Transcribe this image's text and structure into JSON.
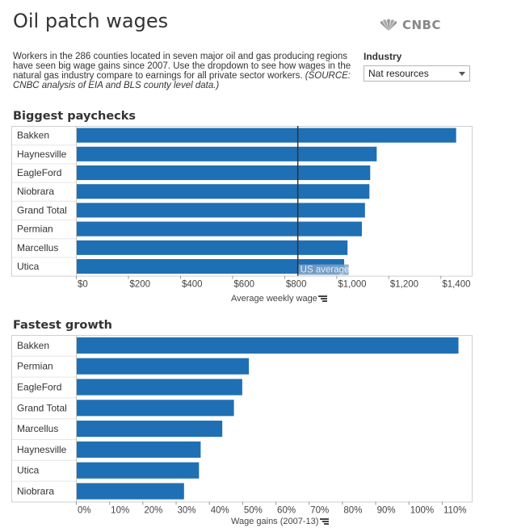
{
  "header": {
    "title": "Oil patch wages",
    "logo_text": "CNBC"
  },
  "intro": {
    "text": "Workers in the 286 counties located in seven major oil and gas producing regions have seen big wage gains since 2007. Use the dropdown to see how wages in the natural gas industry compare to earnings for all private sector workers.",
    "source": "(SOURCE: CNBC analysis of EIA and BLS county level data.)"
  },
  "filter": {
    "label": "Industry",
    "selected": "Nat resources"
  },
  "colors": {
    "bar": "#1f6fb4",
    "reference_line": "#333333",
    "reference_label_bg": "#7fa3c9"
  },
  "chart_data": [
    {
      "type": "bar",
      "orientation": "horizontal",
      "title": "Biggest paychecks",
      "categories": [
        "Bakken",
        "Haynesville",
        "EagleFord",
        "Niobrara",
        "Grand Total",
        "Permian",
        "Marcellus",
        "Utica"
      ],
      "values": [
        1460,
        1155,
        1130,
        1127,
        1110,
        1098,
        1043,
        1030
      ],
      "xlabel": "Average weekly wage",
      "xlim": [
        0,
        1520
      ],
      "ticks": [
        0,
        200,
        400,
        600,
        800,
        1000,
        1200,
        1400
      ],
      "tick_labels": [
        "$0",
        "$200",
        "$400",
        "$600",
        "$800",
        "$1,000",
        "$1,200",
        "$1,400"
      ],
      "reference_line": {
        "value": 852,
        "label": "US average"
      }
    },
    {
      "type": "bar",
      "orientation": "horizontal",
      "title": "Fastest growth",
      "categories": [
        "Bakken",
        "Permian",
        "EagleFord",
        "Grand Total",
        "Marcellus",
        "Haynesville",
        "Utica",
        "Niobrara"
      ],
      "values": [
        1.15,
        0.52,
        0.5,
        0.475,
        0.44,
        0.375,
        0.37,
        0.325
      ],
      "xlabel": "Wage gains (2007-13)",
      "xlim": [
        0,
        1.19
      ],
      "ticks": [
        0,
        0.1,
        0.2,
        0.3,
        0.4,
        0.5,
        0.6,
        0.7,
        0.8,
        0.9,
        1.0,
        1.1
      ],
      "tick_labels": [
        "0%",
        "10%",
        "20%",
        "30%",
        "40%",
        "50%",
        "60%",
        "70%",
        "80%",
        "90%",
        "100%",
        "110%"
      ]
    }
  ]
}
